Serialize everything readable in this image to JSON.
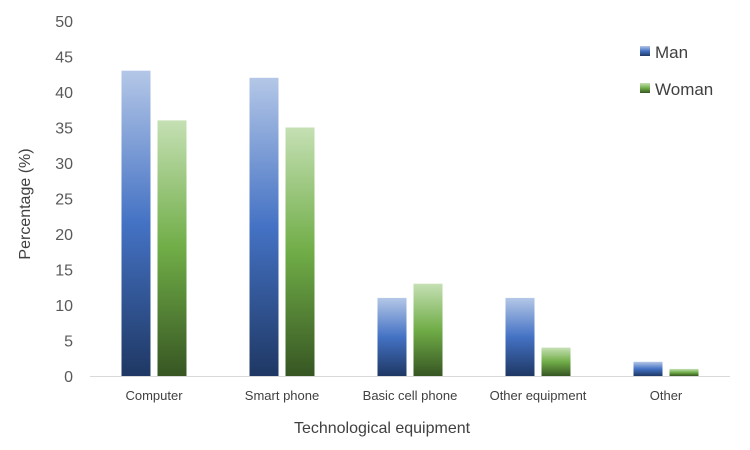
{
  "chart_data": {
    "type": "bar",
    "title": "",
    "xlabel": "Technological equipment",
    "ylabel": "Percentage (%)",
    "ylim": [
      0,
      50
    ],
    "yticks": [
      0,
      5,
      10,
      15,
      20,
      25,
      30,
      35,
      40,
      45,
      50
    ],
    "grid": false,
    "legend_position": "top-right",
    "categories": [
      "Computer",
      "Smart phone",
      "Basic cell phone",
      "Other equipment",
      "Other"
    ],
    "series": [
      {
        "name": "Man",
        "values": [
          43,
          42,
          11,
          11,
          2
        ],
        "color_top": "#b4c7e7",
        "color_mid": "#4472c4",
        "color_bottom": "#1f3864"
      },
      {
        "name": "Woman",
        "values": [
          36,
          35,
          13,
          4,
          1
        ],
        "color_top": "#c5e0b4",
        "color_mid": "#70ad47",
        "color_bottom": "#375623"
      }
    ]
  }
}
